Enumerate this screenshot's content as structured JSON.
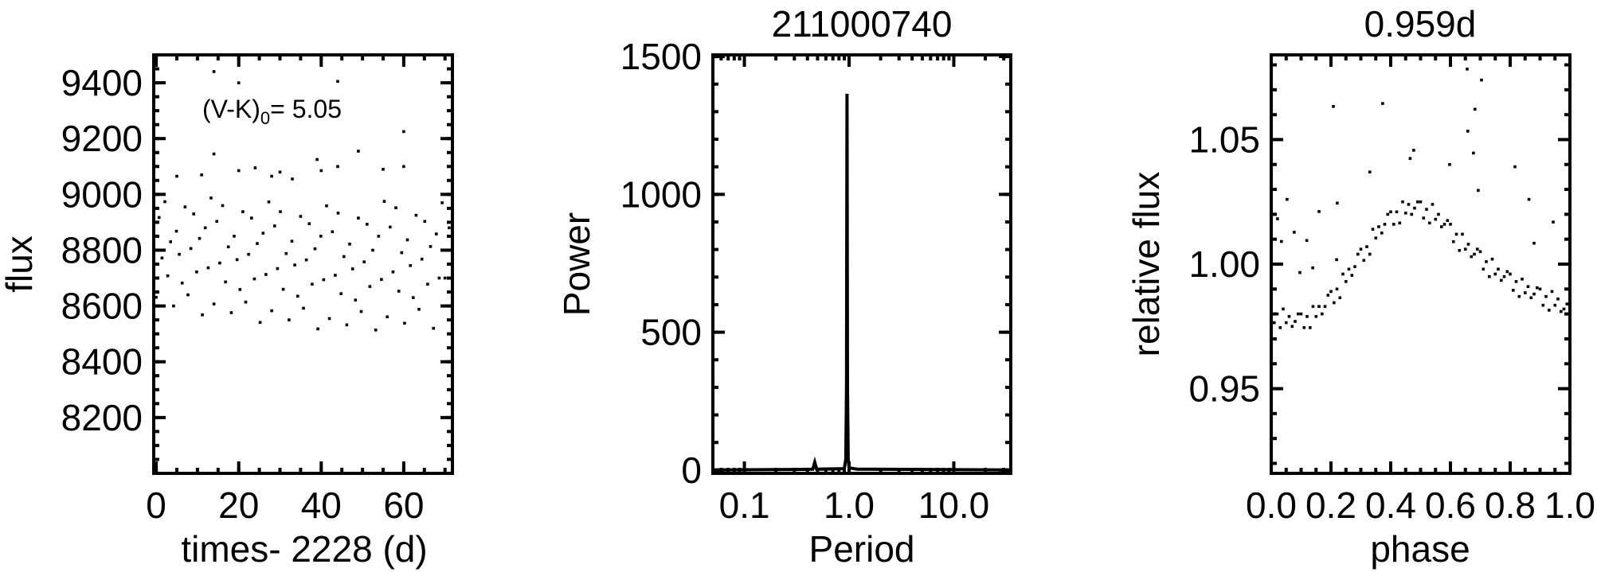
{
  "chart_data": [
    {
      "type": "scatter",
      "title": "",
      "xlabel": "times- 2228 (d)",
      "ylabel": "flux",
      "xlim": [
        -0.6,
        71.8
      ],
      "ylim": [
        8000,
        9500
      ],
      "xscale": "linear",
      "grid": false,
      "color": "#000000",
      "xticks": [
        0,
        20,
        40,
        60
      ],
      "xtick_labels": [
        "0",
        "20",
        "40",
        "60"
      ],
      "yticks": [
        8200,
        8400,
        8600,
        8800,
        9000,
        9200,
        9400
      ],
      "ytick_labels": [
        "8200",
        "8400",
        "8600",
        "8800",
        "9000",
        "9200",
        "9400"
      ],
      "annotation": {
        "text": "(V-K)",
        "sub": "0",
        "value": "= 5.05"
      },
      "points": [
        [
          0,
          8631
        ],
        [
          0.7,
          8917
        ],
        [
          1.4,
          8772
        ],
        [
          2.1,
          8974
        ],
        [
          2.8,
          8708
        ],
        [
          3.5,
          8830
        ],
        [
          4.2,
          8600
        ],
        [
          4.9,
          8868
        ],
        [
          5.6,
          8785
        ],
        [
          6.3,
          8682
        ],
        [
          7,
          8955
        ],
        [
          7.7,
          8640
        ],
        [
          8.4,
          8806
        ],
        [
          9.1,
          8930
        ],
        [
          9.8,
          8722
        ],
        [
          10.5,
          8842
        ],
        [
          11.2,
          8568
        ],
        [
          11.9,
          8880
        ],
        [
          12.6,
          8737
        ],
        [
          13.3,
          8987
        ],
        [
          14,
          8607
        ],
        [
          14.7,
          8903
        ],
        [
          15.4,
          8754
        ],
        [
          16.1,
          8960
        ],
        [
          16.8,
          8686
        ],
        [
          17.5,
          8812
        ],
        [
          18.2,
          8576
        ],
        [
          18.9,
          8850
        ],
        [
          19.6,
          8766
        ],
        [
          20.3,
          8659
        ],
        [
          21,
          8938
        ],
        [
          21.7,
          8614
        ],
        [
          22.4,
          8785
        ],
        [
          23.1,
          8915
        ],
        [
          23.8,
          8697
        ],
        [
          24.5,
          8824
        ],
        [
          25.2,
          8541
        ],
        [
          25.9,
          8861
        ],
        [
          26.6,
          8713
        ],
        [
          27.3,
          8973
        ],
        [
          28,
          8583
        ],
        [
          28.7,
          8887
        ],
        [
          29.4,
          8734
        ],
        [
          30.1,
          8938
        ],
        [
          30.8,
          8660
        ],
        [
          31.5,
          8788
        ],
        [
          32.2,
          8550
        ],
        [
          32.9,
          8832
        ],
        [
          33.6,
          8747
        ],
        [
          34.3,
          8635
        ],
        [
          35,
          8921
        ],
        [
          35.7,
          8592
        ],
        [
          36.4,
          8765
        ],
        [
          37.1,
          8895
        ],
        [
          37.8,
          8678
        ],
        [
          38.5,
          8805
        ],
        [
          39.2,
          8518
        ],
        [
          39.9,
          8850
        ],
        [
          40.6,
          8694
        ],
        [
          41.3,
          8959
        ],
        [
          42,
          8555
        ],
        [
          42.7,
          8866
        ],
        [
          43.4,
          8710
        ],
        [
          44.1,
          8933
        ],
        [
          44.8,
          8644
        ],
        [
          45.5,
          8777
        ],
        [
          46.2,
          8532
        ],
        [
          46.9,
          8822
        ],
        [
          47.6,
          8733
        ],
        [
          48.3,
          8621
        ],
        [
          49,
          8915
        ],
        [
          49.7,
          8580
        ],
        [
          50.4,
          8758
        ],
        [
          51.1,
          8893
        ],
        [
          51.8,
          8670
        ],
        [
          52.5,
          8800
        ],
        [
          53.2,
          8514
        ],
        [
          53.9,
          8850
        ],
        [
          54.6,
          8695
        ],
        [
          55.3,
          8975
        ],
        [
          56,
          8561
        ],
        [
          56.7,
          8883
        ],
        [
          57.4,
          8722
        ],
        [
          58.1,
          8952
        ],
        [
          58.8,
          8653
        ],
        [
          59.5,
          8791
        ],
        [
          60.2,
          8538
        ],
        [
          60.9,
          8837
        ],
        [
          61.6,
          8745
        ],
        [
          62.3,
          8630
        ],
        [
          63,
          8925
        ],
        [
          63.7,
          8588
        ],
        [
          64.4,
          8768
        ],
        [
          65.1,
          8903
        ],
        [
          65.8,
          8678
        ],
        [
          66.5,
          8813
        ],
        [
          67.2,
          8520
        ],
        [
          67.9,
          8858
        ],
        [
          68.6,
          8700
        ],
        [
          69.3,
          8970
        ],
        [
          70,
          8700
        ],
        [
          71,
          8880
        ],
        [
          14,
          9440
        ],
        [
          20,
          9400
        ],
        [
          44,
          9405
        ],
        [
          60,
          9225
        ],
        [
          14,
          9145
        ],
        [
          49,
          9155
        ],
        [
          39,
          9125
        ],
        [
          44,
          9100
        ],
        [
          55,
          9090
        ],
        [
          60,
          9100
        ],
        [
          40,
          9085
        ],
        [
          20,
          9085
        ],
        [
          11,
          9070
        ],
        [
          5,
          9065
        ],
        [
          24,
          9095
        ],
        [
          30,
          9080
        ],
        [
          28,
          9065
        ],
        [
          33,
          9055
        ]
      ]
    },
    {
      "type": "line",
      "title": "211000740",
      "xlabel": "Period",
      "ylabel": "Power",
      "xlim": [
        0.05,
        35
      ],
      "ylim": [
        -12,
        1506
      ],
      "xscale": "log",
      "grid": false,
      "color": "#000000",
      "xticks": [
        0.1,
        1.0,
        10.0
      ],
      "xtick_labels": [
        "0.1",
        "1.0",
        "10.0"
      ],
      "yticks": [
        0,
        500,
        1000,
        1500
      ],
      "ytick_labels": [
        "0",
        "500",
        "1000",
        "1500"
      ],
      "x": [
        0.05,
        0.1,
        0.3,
        0.45,
        0.47,
        0.49,
        0.9,
        0.93,
        0.945,
        0.955,
        0.965,
        0.98,
        1.0,
        1.2,
        5,
        35
      ],
      "y": [
        0,
        1,
        2,
        3,
        28,
        3,
        5,
        40,
        300,
        1365,
        300,
        40,
        8,
        3,
        2,
        0
      ]
    },
    {
      "type": "scatter",
      "title": "0.959d",
      "xlabel": "phase",
      "ylabel": "relative flux",
      "xlim": [
        0.0,
        1.0
      ],
      "ylim": [
        0.916,
        1.084
      ],
      "xscale": "linear",
      "grid": false,
      "color": "#000000",
      "xticks": [
        0.0,
        0.2,
        0.4,
        0.6,
        0.8,
        1.0
      ],
      "xtick_labels": [
        "0.0",
        "0.2",
        "0.4",
        "0.6",
        "0.8",
        "1.0"
      ],
      "yticks": [
        0.95,
        1.0,
        1.05
      ],
      "ytick_labels": [
        "0.95",
        "1.00",
        "1.05"
      ],
      "points": [
        [
          0.0,
          0.983
        ],
        [
          0.01,
          0.9765
        ],
        [
          0.02,
          0.98
        ],
        [
          0.03,
          0.9745
        ],
        [
          0.04,
          0.982
        ],
        [
          0.05,
          0.9765
        ],
        [
          0.06,
          0.979
        ],
        [
          0.07,
          0.975
        ],
        [
          0.08,
          0.977
        ],
        [
          0.09,
          0.98
        ],
        [
          0.1,
          0.98
        ],
        [
          0.11,
          0.9745
        ],
        [
          0.12,
          0.979
        ],
        [
          0.13,
          0.9745
        ],
        [
          0.14,
          0.983
        ],
        [
          0.15,
          0.979
        ],
        [
          0.16,
          0.983
        ],
        [
          0.17,
          0.98
        ],
        [
          0.18,
          0.983
        ],
        [
          0.19,
          0.9875
        ],
        [
          0.2,
          0.989
        ],
        [
          0.21,
          0.9845
        ],
        [
          0.22,
          0.99
        ],
        [
          0.23,
          0.9865
        ],
        [
          0.24,
          0.996
        ],
        [
          0.25,
          0.993
        ],
        [
          0.26,
          0.998
        ],
        [
          0.27,
          0.9955
        ],
        [
          0.28,
          0.999
        ],
        [
          0.29,
          1.004
        ],
        [
          0.3,
          1.006
        ],
        [
          0.31,
          1.0015
        ],
        [
          0.32,
          1.007
        ],
        [
          0.33,
          1.004
        ],
        [
          0.34,
          1.014
        ],
        [
          0.35,
          1.0105
        ],
        [
          0.36,
          1.015
        ],
        [
          0.37,
          1.0125
        ],
        [
          0.38,
          1.016
        ],
        [
          0.39,
          1.02
        ],
        [
          0.4,
          1.021
        ],
        [
          0.41,
          1.016
        ],
        [
          0.42,
          1.021
        ],
        [
          0.43,
          1.0165
        ],
        [
          0.44,
          1.025
        ],
        [
          0.45,
          1.0205
        ],
        [
          0.46,
          1.024
        ],
        [
          0.47,
          1.02
        ],
        [
          0.48,
          1.0225
        ],
        [
          0.49,
          1.025
        ],
        [
          0.5,
          1.025
        ],
        [
          0.51,
          1.0185
        ],
        [
          0.52,
          1.022
        ],
        [
          0.53,
          1.0165
        ],
        [
          0.54,
          1.024
        ],
        [
          0.55,
          1.018
        ],
        [
          0.56,
          1.02
        ],
        [
          0.57,
          1.015
        ],
        [
          0.58,
          1.016
        ],
        [
          0.59,
          1.0175
        ],
        [
          0.6,
          1.016
        ],
        [
          0.61,
          1.009
        ],
        [
          0.62,
          1.012
        ],
        [
          0.63,
          1.0055
        ],
        [
          0.64,
          1.012
        ],
        [
          0.65,
          1.006
        ],
        [
          0.66,
          1.008
        ],
        [
          0.67,
          1.003
        ],
        [
          0.68,
          1.004
        ],
        [
          0.69,
          1.006
        ],
        [
          0.7,
          1.005
        ],
        [
          0.71,
          0.998
        ],
        [
          0.72,
          1.001
        ],
        [
          0.73,
          0.995
        ],
        [
          0.74,
          1.002
        ],
        [
          0.75,
          0.996
        ],
        [
          0.76,
          0.998
        ],
        [
          0.77,
          0.9935
        ],
        [
          0.78,
          0.995
        ],
        [
          0.79,
          0.997
        ],
        [
          0.8,
          0.996
        ],
        [
          0.81,
          0.9895
        ],
        [
          0.82,
          0.993
        ],
        [
          0.83,
          0.987
        ],
        [
          0.84,
          0.994
        ],
        [
          0.85,
          0.9885
        ],
        [
          0.86,
          0.991
        ],
        [
          0.87,
          0.9865
        ],
        [
          0.88,
          0.988
        ],
        [
          0.89,
          0.9905
        ],
        [
          0.9,
          0.99
        ],
        [
          0.91,
          0.9835
        ],
        [
          0.92,
          0.987
        ],
        [
          0.93,
          0.9815
        ],
        [
          0.94,
          0.989
        ],
        [
          0.95,
          0.9835
        ],
        [
          0.96,
          0.986
        ],
        [
          0.97,
          0.981
        ],
        [
          0.98,
          0.982
        ],
        [
          0.99,
          0.984
        ],
        [
          1.0,
          0.983
        ],
        [
          0.656,
          1.0783
        ],
        [
          0.704,
          1.0739
        ],
        [
          0.208,
          1.0633
        ],
        [
          0.373,
          1.0645
        ],
        [
          0.682,
          1.0622
        ],
        [
          0.658,
          1.0534
        ],
        [
          0.477,
          1.0457
        ],
        [
          0.677,
          1.0446
        ],
        [
          0.465,
          1.0424
        ],
        [
          0.816,
          1.0391
        ],
        [
          0.597,
          1.04
        ],
        [
          0.33,
          1.037
        ],
        [
          0.693,
          1.0296
        ],
        [
          0.053,
          1.026
        ],
        [
          0.221,
          1.0245
        ],
        [
          0.863,
          1.026
        ],
        [
          0.16,
          1.0211
        ],
        [
          0.021,
          1.0182
        ],
        [
          0.077,
          1.0128
        ],
        [
          0.034,
          1.0091
        ],
        [
          0.119,
          1.0095
        ],
        [
          0.944,
          1.0169
        ],
        [
          0.88,
          1.0084
        ],
        [
          0.096,
          0.9966
        ],
        [
          0.139,
          0.9985
        ],
        [
          0.219,
          1.0018
        ]
      ]
    }
  ]
}
